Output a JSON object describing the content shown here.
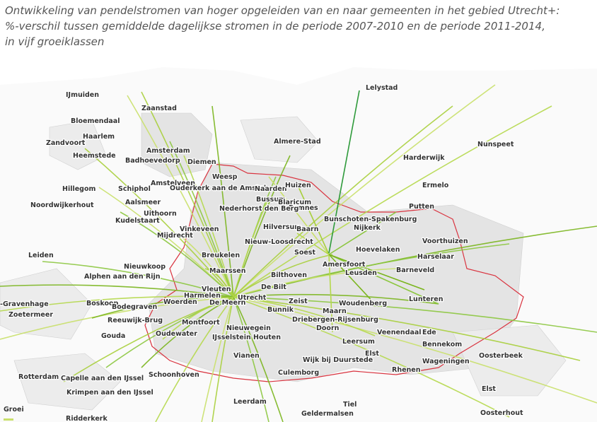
{
  "title": {
    "lines": [
      "Ontwikkeling van pendelstromen van hoger opgeleiden van en naar gemeenten in het gebied Utrecht+:",
      "%-verschil tussen gemiddelde dagelijkse stromen in de periode 2007-2010 en de periode 2011-2014,",
      "in vijf groeiklassen"
    ]
  },
  "legend": {
    "title": "Groei"
  },
  "places": [
    "IJmuiden",
    "Zaanstad",
    "Lelystad",
    "Bloemendaal",
    "Haarlem",
    "Zandvoort",
    "Heemstede",
    "Amsterdam",
    "Almere-Stad",
    "Nunspeet",
    "Badhoevedorp",
    "Diemen",
    "Harderwijk",
    "Weesp",
    "Amstelveen",
    "Ouderkerk aan de Amstel",
    "Naarden",
    "Huizen",
    "Hillegom",
    "Schiphol",
    "Ermelo",
    "Aalsmeer",
    "Bussum",
    "Blaricum",
    "Noordwijkerhout",
    "Eemnes",
    "Nederhorst den Berg",
    "Putten",
    "Uithoorn",
    "Bunschoten-Spakenburg",
    "Kudelstaart",
    "Nijkerk",
    "Vinkeveen",
    "Hilversum",
    "Baarn",
    "Mijdrecht",
    "Voorthuizen",
    "Nieuw-Loosdrecht",
    "Soest",
    "Hoevelaken",
    "Leiden",
    "Breukelen",
    "Harselaar",
    "Nieuwkoop",
    "Amersfoort",
    "Alphen aan den Rijn",
    "Maarssen",
    "Leusden",
    "Barneveld",
    "Bilthoven",
    "De Bilt",
    "Vleuten",
    "Harmelen",
    "Utrecht",
    "Lunteren",
    "-Gravenhage",
    "Boskoop",
    "Bodegraven",
    "Woerden",
    "De Meern",
    "Zeist",
    "Woudenberg",
    "Bunnik",
    "Maarn",
    "Zoetermeer",
    "Reeuwijk-Brug",
    "Montfoort",
    "Driebergen-Rijsenburg",
    "Doorn",
    "Nieuwegein",
    "Gouda",
    "Oudewater",
    "IJsselstein",
    "Houten",
    "Veenendaal",
    "Ede",
    "Leersum",
    "Bennekom",
    "Oosterbeek",
    "Elst",
    "Vianen",
    "Wijk bij Duurstede",
    "Wageningen",
    "Rotterdam",
    "Capelle aan den IJssel",
    "Schoonhoven",
    "Rhenen",
    "Culemborg",
    "Elst",
    "Leerdam",
    "Krimpen aan den IJssel",
    "Tiel",
    "Ridderkerk",
    "Geldermalsen",
    "Oosterhout"
  ]
}
